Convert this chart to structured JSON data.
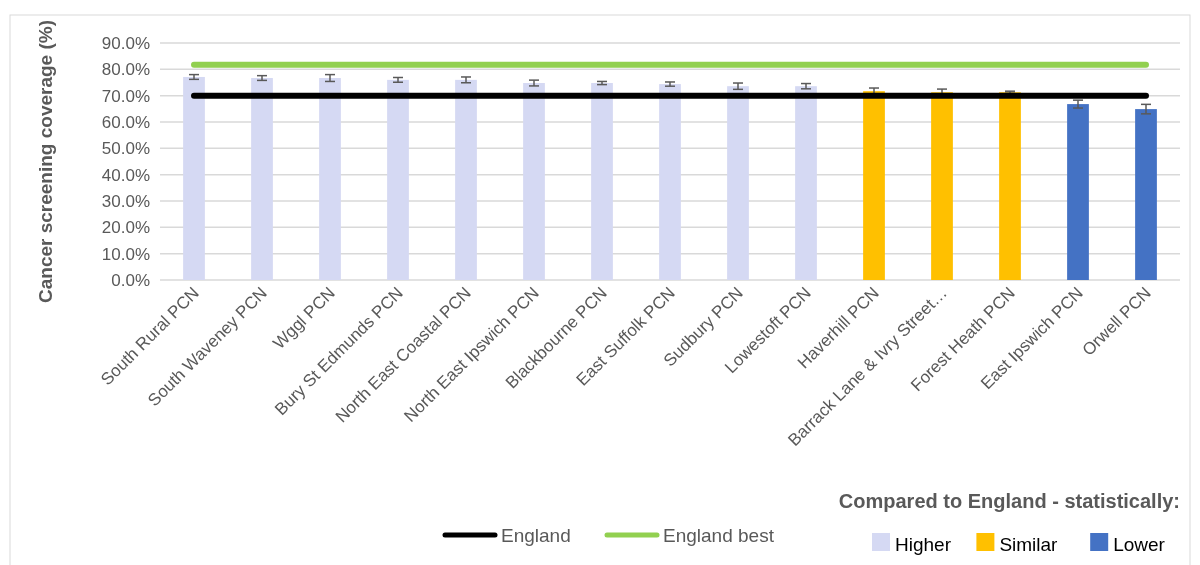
{
  "chart_data": {
    "type": "bar",
    "ylabel": "Cancer screening coverage (%)",
    "legend_title": "Compared to England - statistically:",
    "legend": "bottom",
    "grid": "y",
    "categories": [
      "South Rural PCN",
      "South Waveney PCN",
      "Wggl PCN",
      "Bury St Edmunds PCN",
      "North East Coastal PCN",
      "North East Ipswich PCN",
      "Blackbourne PCN",
      "East Suffolk PCN",
      "Sudbury PCN",
      "Lowestoft PCN",
      "Haverhill PCN",
      "Barrack Lane & Ivry Street…",
      "Forest Heath PCN",
      "East Ipswich PCN",
      "Orwell PCN"
    ],
    "series": [
      {
        "name": "Higher",
        "color": "#d5d9f3",
        "values": [
          77.1,
          76.7,
          76.7,
          76.0,
          76.0,
          74.8,
          74.8,
          74.4,
          73.6,
          73.6,
          null,
          null,
          null,
          null,
          null
        ],
        "errors": [
          0.9,
          0.9,
          1.3,
          0.9,
          1.1,
          1.1,
          0.6,
          0.8,
          1.2,
          1.0,
          null,
          null,
          null,
          null,
          null
        ]
      },
      {
        "name": "Similar",
        "color": "#ffc000",
        "values": [
          null,
          null,
          null,
          null,
          null,
          null,
          null,
          null,
          null,
          null,
          71.7,
          71.3,
          71.3,
          null,
          null
        ],
        "errors": [
          null,
          null,
          null,
          null,
          null,
          null,
          null,
          null,
          null,
          null,
          1.2,
          1.2,
          0.4,
          null,
          null
        ]
      },
      {
        "name": "Lower",
        "color": "#4472c4",
        "values": [
          null,
          null,
          null,
          null,
          null,
          null,
          null,
          null,
          null,
          null,
          null,
          null,
          null,
          66.8,
          64.9
        ],
        "errors": [
          null,
          null,
          null,
          null,
          null,
          null,
          null,
          null,
          null,
          null,
          null,
          null,
          null,
          1.5,
          1.8
        ]
      }
    ],
    "ref_lines": [
      {
        "axis": "y",
        "value": 70.0,
        "label": "England",
        "color": "#000000"
      },
      {
        "axis": "y",
        "value": 81.7,
        "label": "England best",
        "color": "#92d050"
      }
    ],
    "ylim": [
      0,
      90
    ],
    "yticks": [
      {
        "value": 0,
        "label": "0.0%"
      },
      {
        "value": 10,
        "label": "10.0%"
      },
      {
        "value": 20,
        "label": "20.0%"
      },
      {
        "value": 30,
        "label": "30.0%"
      },
      {
        "value": 40,
        "label": "40.0%"
      },
      {
        "value": 50,
        "label": "50.0%"
      },
      {
        "value": 60,
        "label": "60.0%"
      },
      {
        "value": 70,
        "label": "70.0%"
      },
      {
        "value": 80,
        "label": "80.0%"
      },
      {
        "value": 90,
        "label": "90.0%"
      }
    ]
  }
}
